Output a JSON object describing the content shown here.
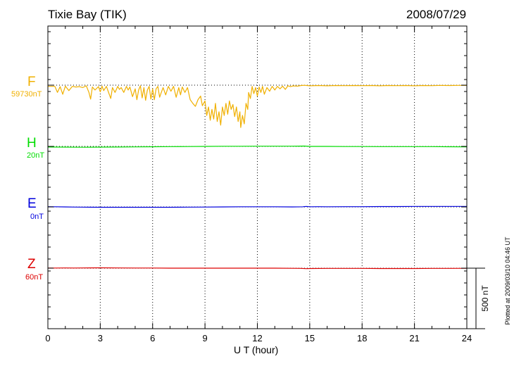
{
  "chart_data": {
    "type": "line",
    "title": "Tixie Bay (TIK)",
    "date": "2008/07/29",
    "xlabel": "U T (hour)",
    "x_ticks": [
      0,
      3,
      6,
      9,
      12,
      15,
      18,
      21,
      24
    ],
    "xlim": [
      0,
      24
    ],
    "grid": true,
    "scale_label": "500 nT",
    "scale_nT": 500,
    "footnote": "Plotted at 2009/03/10 04:46 UT",
    "series": [
      {
        "name": "F",
        "baseline_label": "59730nT",
        "baseline_nT": 59730,
        "color": "#f0b000",
        "points": [
          [
            0,
            -10
          ],
          [
            0.4,
            -10
          ],
          [
            0.55,
            -60
          ],
          [
            0.7,
            -12
          ],
          [
            0.85,
            -75
          ],
          [
            1.0,
            -8
          ],
          [
            1.2,
            -45
          ],
          [
            1.4,
            -10
          ],
          [
            1.6,
            -15
          ],
          [
            1.8,
            -12
          ],
          [
            2.0,
            -20
          ],
          [
            2.2,
            -5
          ],
          [
            2.35,
            -60
          ],
          [
            2.45,
            -115
          ],
          [
            2.55,
            -15
          ],
          [
            2.7,
            -40
          ],
          [
            2.9,
            -12
          ],
          [
            3.0,
            -55
          ],
          [
            3.1,
            -8
          ],
          [
            3.2,
            -45
          ],
          [
            3.35,
            -10
          ],
          [
            3.5,
            -70
          ],
          [
            3.6,
            -110
          ],
          [
            3.7,
            -20
          ],
          [
            3.85,
            -60
          ],
          [
            4.0,
            -10
          ],
          [
            4.1,
            -35
          ],
          [
            4.2,
            -20
          ],
          [
            4.35,
            -60
          ],
          [
            4.5,
            -10
          ],
          [
            4.6,
            -40
          ],
          [
            4.7,
            -15
          ],
          [
            4.85,
            -95
          ],
          [
            5.0,
            -30
          ],
          [
            5.1,
            -120
          ],
          [
            5.2,
            -40
          ],
          [
            5.3,
            -5
          ],
          [
            5.4,
            -105
          ],
          [
            5.5,
            -20
          ],
          [
            5.6,
            -125
          ],
          [
            5.7,
            -40
          ],
          [
            5.8,
            -10
          ],
          [
            5.9,
            -115
          ],
          [
            6.0,
            -30
          ],
          [
            6.1,
            -120
          ],
          [
            6.2,
            -30
          ],
          [
            6.3,
            -10
          ],
          [
            6.4,
            -100
          ],
          [
            6.5,
            -60
          ],
          [
            6.6,
            -20
          ],
          [
            6.75,
            -80
          ],
          [
            6.9,
            -10
          ],
          [
            7.05,
            -50
          ],
          [
            7.2,
            -10
          ],
          [
            7.35,
            -100
          ],
          [
            7.5,
            -20
          ],
          [
            7.6,
            -80
          ],
          [
            7.7,
            -15
          ],
          [
            7.85,
            -60
          ],
          [
            8.0,
            -20
          ],
          [
            8.15,
            -120
          ],
          [
            8.3,
            -150
          ],
          [
            8.45,
            -175
          ],
          [
            8.6,
            -120
          ],
          [
            8.75,
            -90
          ],
          [
            8.85,
            -170
          ],
          [
            9.0,
            -130
          ],
          [
            9.1,
            -250
          ],
          [
            9.2,
            -180
          ],
          [
            9.3,
            -290
          ],
          [
            9.4,
            -200
          ],
          [
            9.5,
            -280
          ],
          [
            9.6,
            -150
          ],
          [
            9.7,
            -300
          ],
          [
            9.8,
            -220
          ],
          [
            9.9,
            -330
          ],
          [
            10.0,
            -180
          ],
          [
            10.1,
            -250
          ],
          [
            10.2,
            -150
          ],
          [
            10.3,
            -240
          ],
          [
            10.4,
            -130
          ],
          [
            10.5,
            -200
          ],
          [
            10.6,
            -160
          ],
          [
            10.7,
            -260
          ],
          [
            10.8,
            -180
          ],
          [
            10.9,
            -300
          ],
          [
            11.0,
            -220
          ],
          [
            11.05,
            -350
          ],
          [
            11.15,
            -250
          ],
          [
            11.25,
            -320
          ],
          [
            11.35,
            -150
          ],
          [
            11.45,
            -200
          ],
          [
            11.5,
            -60
          ],
          [
            11.6,
            -110
          ],
          [
            11.7,
            -10
          ],
          [
            11.8,
            -70
          ],
          [
            11.9,
            -20
          ],
          [
            12.0,
            -90
          ],
          [
            12.1,
            -15
          ],
          [
            12.2,
            -60
          ],
          [
            12.3,
            -10
          ],
          [
            12.4,
            -75
          ],
          [
            12.55,
            -20
          ],
          [
            12.7,
            -50
          ],
          [
            12.85,
            -10
          ],
          [
            13.0,
            -40
          ],
          [
            13.15,
            -10
          ],
          [
            13.3,
            -30
          ],
          [
            13.45,
            -8
          ],
          [
            13.6,
            -35
          ],
          [
            13.75,
            -5
          ],
          [
            13.9,
            -12
          ],
          [
            14.05,
            -6
          ],
          [
            14.3,
            -8
          ],
          [
            14.5,
            -3
          ],
          [
            14.7,
            -1
          ],
          [
            15.0,
            -5
          ],
          [
            15.5,
            -3
          ],
          [
            16.0,
            -5
          ],
          [
            16.5,
            -3
          ],
          [
            17.0,
            -4
          ],
          [
            17.5,
            -3
          ],
          [
            18.0,
            -4
          ],
          [
            18.5,
            -3
          ],
          [
            19.0,
            -5
          ],
          [
            19.5,
            -3
          ],
          [
            20.0,
            -4
          ],
          [
            20.5,
            -3
          ],
          [
            21.0,
            -5
          ],
          [
            21.5,
            -3
          ],
          [
            22.0,
            -4
          ],
          [
            22.5,
            -2
          ],
          [
            23.0,
            -3
          ],
          [
            23.5,
            -2
          ],
          [
            24.0,
            -2
          ]
        ]
      },
      {
        "name": "H",
        "baseline_label": "20nT",
        "baseline_nT": 20,
        "color": "#00dd00",
        "points": [
          [
            0,
            -5
          ],
          [
            1,
            -6
          ],
          [
            2,
            -7
          ],
          [
            3,
            -6
          ],
          [
            4,
            -5
          ],
          [
            5,
            -4
          ],
          [
            6,
            -3
          ],
          [
            7,
            -2
          ],
          [
            8,
            -1
          ],
          [
            9,
            0
          ],
          [
            10,
            1
          ],
          [
            11,
            1
          ],
          [
            12,
            2
          ],
          [
            13,
            2
          ],
          [
            14,
            2
          ],
          [
            14.7,
            3
          ],
          [
            15,
            0
          ],
          [
            16,
            0
          ],
          [
            17,
            -1
          ],
          [
            18,
            -1
          ],
          [
            19,
            -2
          ],
          [
            20,
            -2
          ],
          [
            21,
            -2
          ],
          [
            22,
            -2
          ],
          [
            23,
            -3
          ],
          [
            24,
            -4
          ]
        ]
      },
      {
        "name": "E",
        "baseline_label": "0nT",
        "baseline_nT": 0,
        "color": "#0000dd",
        "points": [
          [
            0,
            2
          ],
          [
            0.5,
            1
          ],
          [
            1,
            0
          ],
          [
            1.5,
            -1
          ],
          [
            2,
            -2
          ],
          [
            3,
            -3
          ],
          [
            4,
            -3
          ],
          [
            5,
            -3
          ],
          [
            6,
            -3
          ],
          [
            7,
            -3
          ],
          [
            8,
            -2
          ],
          [
            9,
            -1
          ],
          [
            10,
            0
          ],
          [
            11,
            1
          ],
          [
            12,
            1
          ],
          [
            13,
            1
          ],
          [
            14,
            0
          ],
          [
            14.6,
            1
          ],
          [
            14.8,
            4
          ],
          [
            15.0,
            1
          ],
          [
            15.5,
            2
          ],
          [
            16,
            1
          ],
          [
            17,
            2
          ],
          [
            18,
            2
          ],
          [
            19,
            3
          ],
          [
            20,
            3
          ],
          [
            21,
            4
          ],
          [
            22,
            4
          ],
          [
            23,
            4
          ],
          [
            24,
            4
          ]
        ]
      },
      {
        "name": "Z",
        "baseline_label": "60nT",
        "baseline_nT": 60,
        "color": "#dd0000",
        "points": [
          [
            0,
            1
          ],
          [
            0.5,
            1
          ],
          [
            1,
            2
          ],
          [
            1.5,
            1
          ],
          [
            2,
            2
          ],
          [
            3,
            3
          ],
          [
            4,
            2
          ],
          [
            5,
            1
          ],
          [
            6,
            1
          ],
          [
            7,
            0
          ],
          [
            8,
            0
          ],
          [
            9,
            0
          ],
          [
            10,
            0
          ],
          [
            11,
            0
          ],
          [
            12,
            0
          ],
          [
            13,
            0
          ],
          [
            14,
            -1
          ],
          [
            14.5,
            -2
          ],
          [
            14.8,
            -4
          ],
          [
            15,
            -3
          ],
          [
            16,
            -2
          ],
          [
            17,
            -2
          ],
          [
            18,
            -2
          ],
          [
            19,
            -3
          ],
          [
            20,
            -3
          ],
          [
            21,
            -3
          ],
          [
            22,
            -2
          ],
          [
            23,
            -2
          ],
          [
            24,
            -1
          ]
        ]
      }
    ]
  }
}
